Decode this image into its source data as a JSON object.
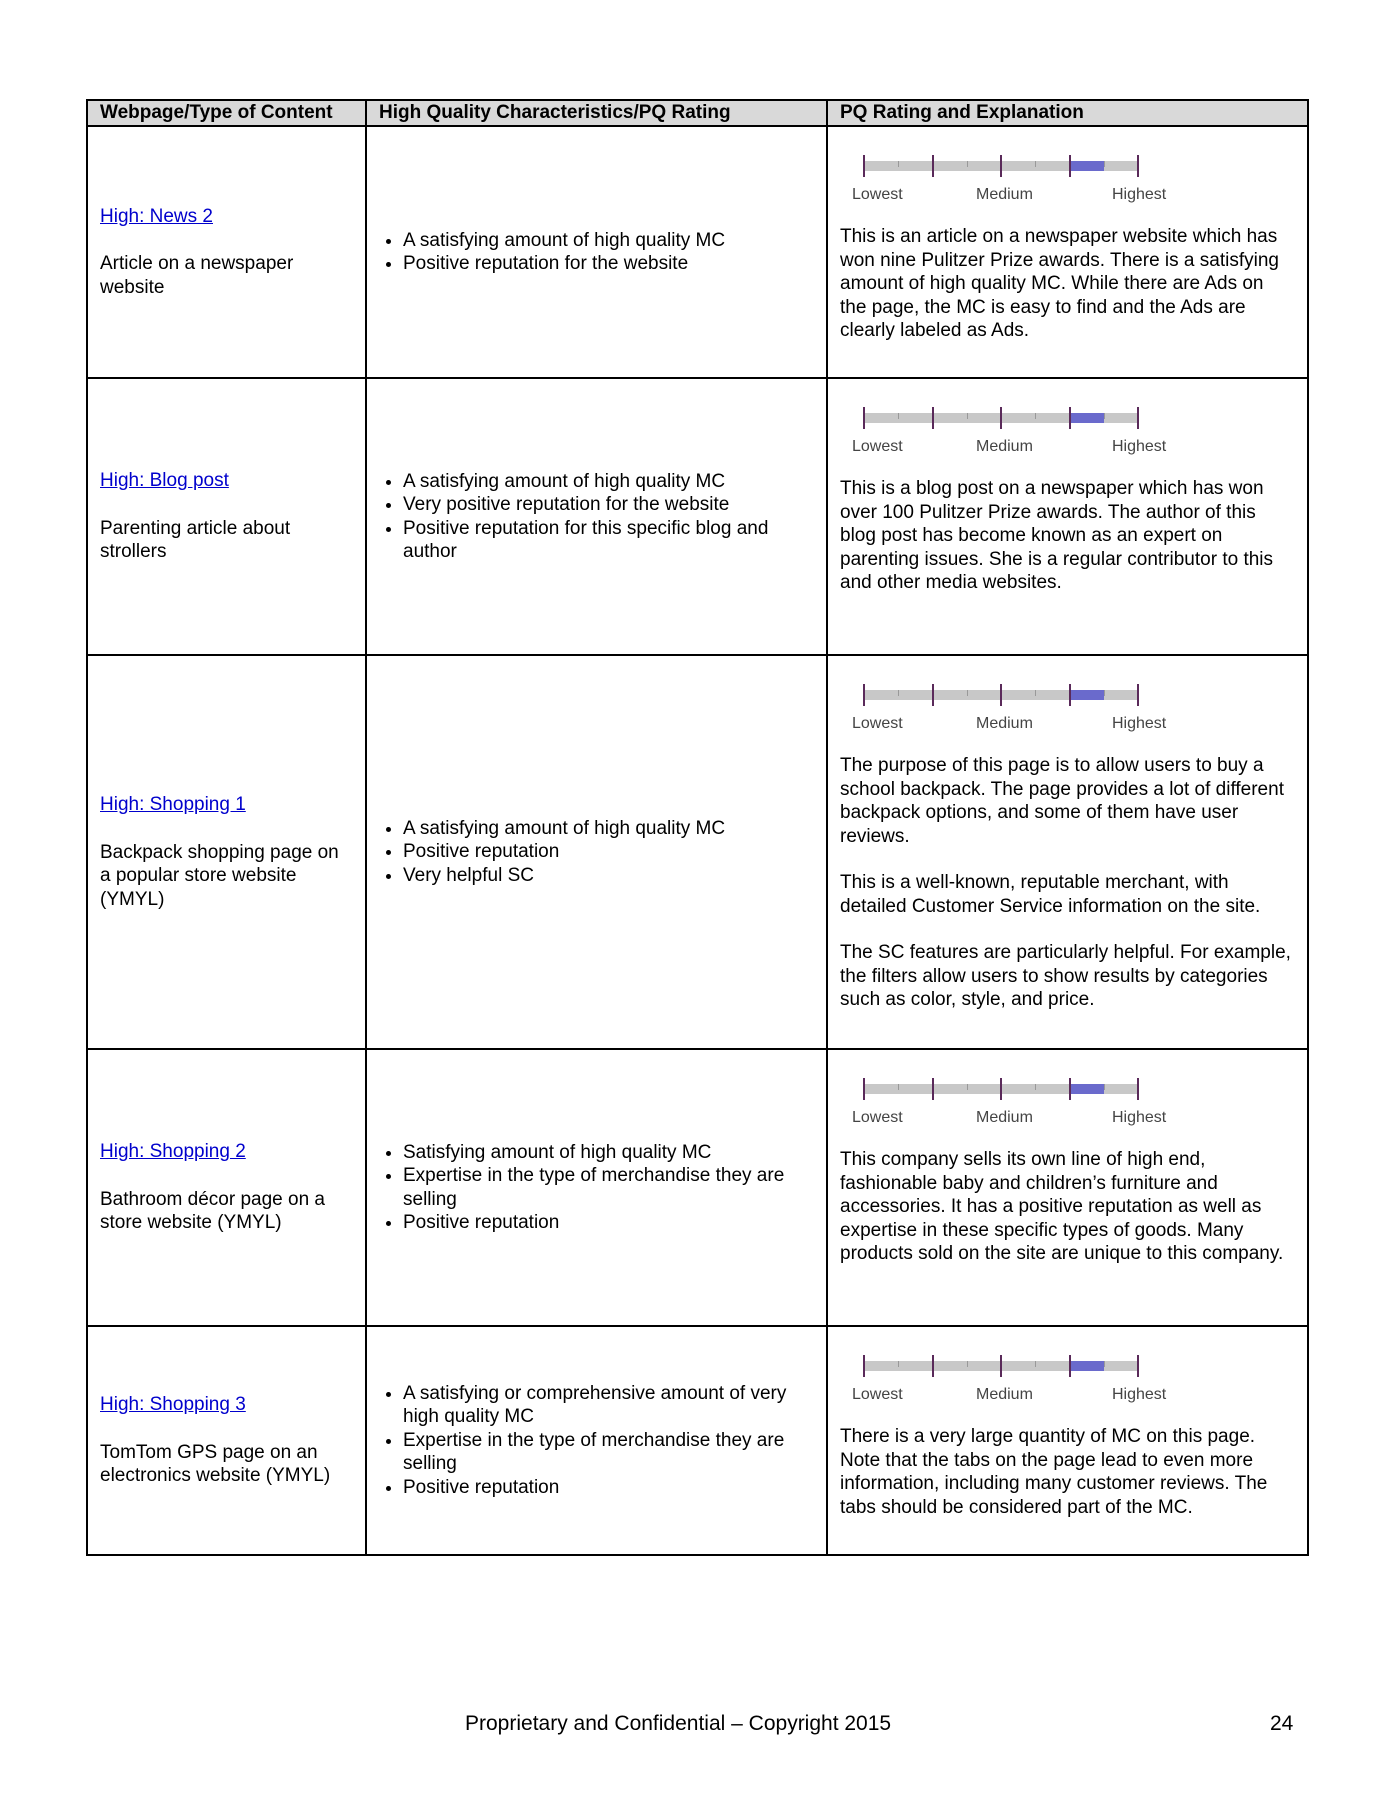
{
  "headers": [
    "Webpage/Type of Content",
    "High Quality Characteristics/PQ Rating",
    "PQ Rating and Explanation"
  ],
  "scale": {
    "labels": [
      "Lowest",
      "Medium",
      "Highest"
    ],
    "rating": "High",
    "rating_range": [
      3,
      3.5
    ],
    "scale_max": 4,
    "fill_color": "#6a6acc",
    "track_color": "#c8c8c8"
  },
  "rows": [
    {
      "link": "High: News 2",
      "desc": "Article on a newspaper website",
      "bullets": [
        "A satisfying amount of high quality MC",
        "Positive reputation for the website"
      ],
      "explanation": [
        "This is an article on a newspaper website which has won nine Pulitzer Prize awards.  There is a satisfying amount of high quality MC.  While there are Ads on the page, the MC is easy to find and the Ads are clearly labeled as Ads."
      ]
    },
    {
      "link": "High: Blog post",
      "desc": "Parenting article about strollers",
      "bullets": [
        "A satisfying amount of high quality MC",
        "Very positive reputation for the website",
        "Positive reputation for this specific blog and author"
      ],
      "explanation": [
        "This is a blog post on a newspaper which has won over 100 Pulitzer Prize awards.  The author of this blog post has become known as an expert on parenting issues.  She is a regular contributor to this and other media websites."
      ]
    },
    {
      "link": "High: Shopping 1",
      "desc": "Backpack shopping page on a popular store website (YMYL)",
      "bullets": [
        "A satisfying amount of high quality MC",
        "Positive reputation",
        "Very helpful SC"
      ],
      "explanation": [
        "The purpose of this page is to allow users to buy a school backpack.  The page provides a lot of different backpack options, and some of them have user reviews.",
        "This is a well-known, reputable merchant, with detailed Customer Service information on the site.",
        "The SC features are particularly helpful.  For example, the filters allow users to show results by categories such as color, style, and price."
      ]
    },
    {
      "link": "High: Shopping 2",
      "desc": "Bathroom décor page on a store website (YMYL)",
      "bullets": [
        "Satisfying amount of high quality MC",
        "Expertise in the type of merchandise they are selling",
        "Positive reputation"
      ],
      "explanation": [
        "This company sells its own line of high end, fashionable baby and children’s furniture and accessories.  It has a positive reputation as well as expertise in these specific types of goods.  Many products sold on the site are unique to this company."
      ]
    },
    {
      "link": "High: Shopping 3",
      "desc": "TomTom GPS page on an electronics website (YMYL)",
      "bullets": [
        "A satisfying or comprehensive amount of very high quality MC",
        "Expertise in the type of merchandise they are selling",
        "Positive reputation"
      ],
      "explanation": [
        "There is a very large quantity of MC on this page.  Note that the tabs on the page lead to even more information, including many customer reviews.  The tabs should be considered part of the MC."
      ]
    }
  ],
  "footer": "Proprietary and Confidential – Copyright 2015",
  "page_number": "24"
}
